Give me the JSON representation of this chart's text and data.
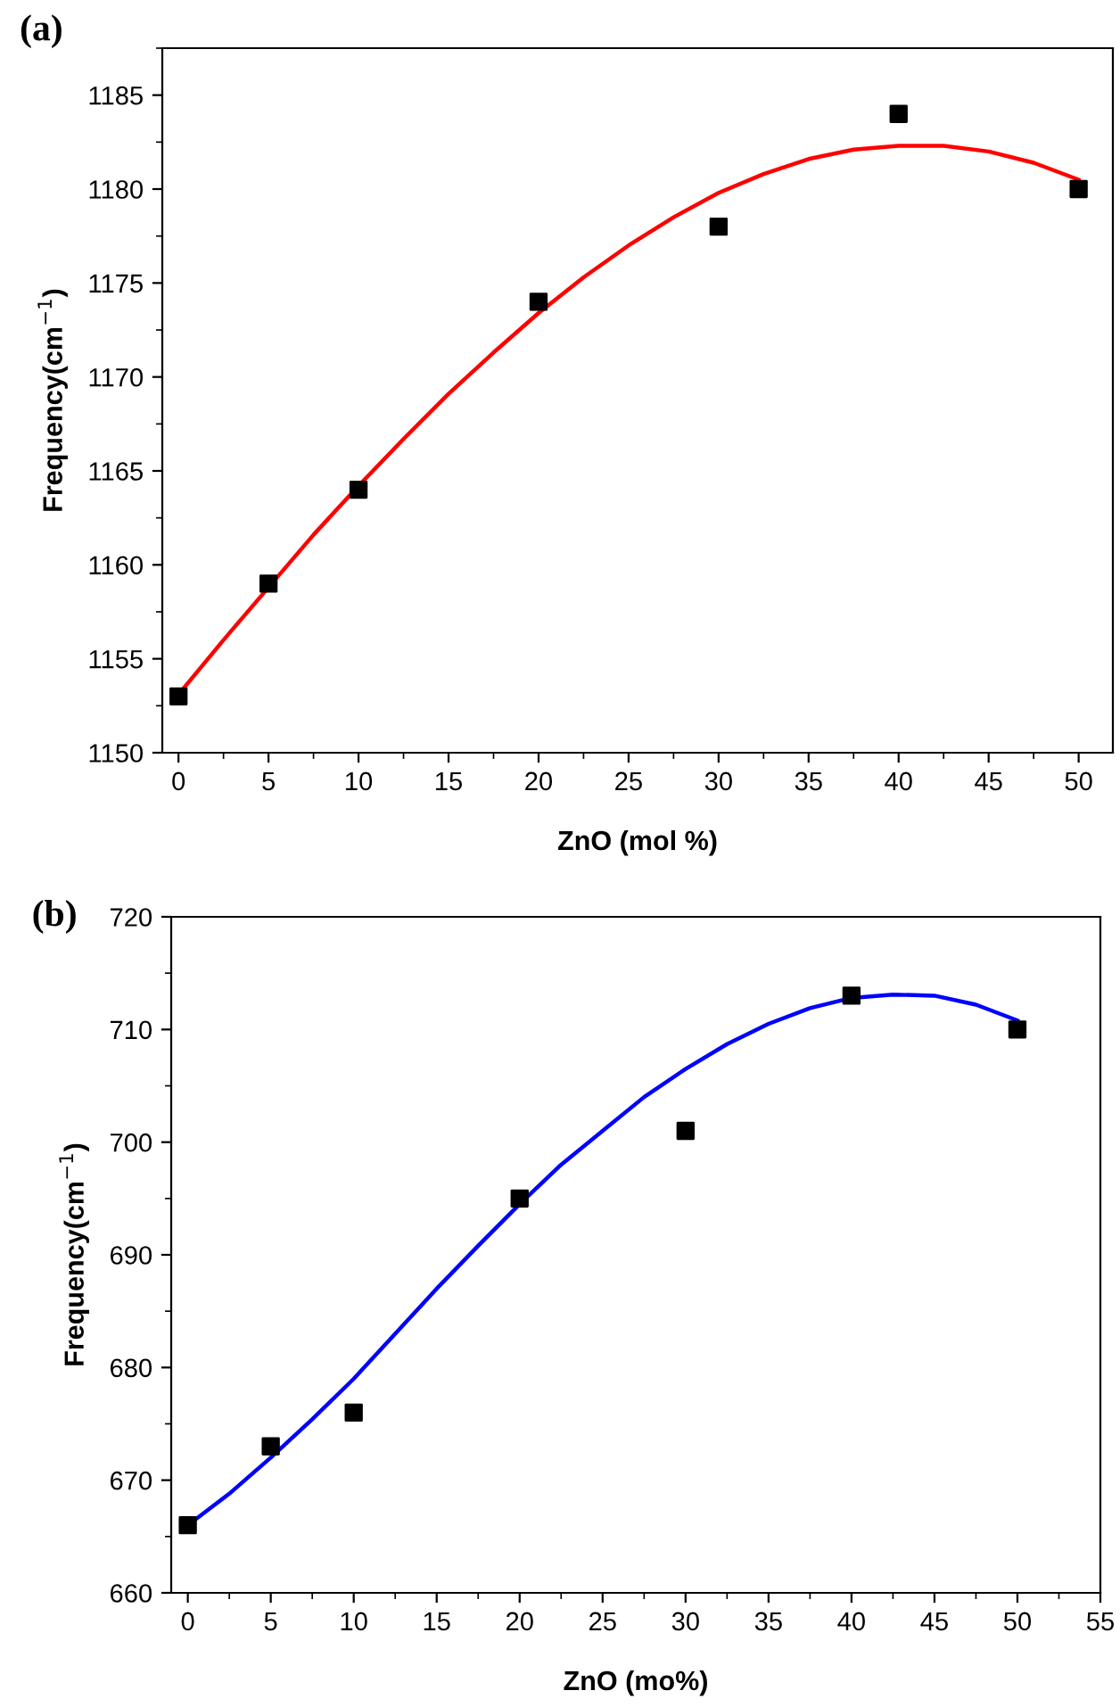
{
  "chart_data": [
    {
      "type": "scatter",
      "title": "(a)",
      "xlabel": "ZnO (mol %)",
      "ylabel": "Frequency(cm$^{−1}$)",
      "marker": "square",
      "xlim": [
        -0.9,
        51.9
      ],
      "ylim": [
        1150,
        1187.5
      ],
      "xticks": [
        0,
        5,
        10,
        15,
        20,
        25,
        30,
        35,
        40,
        45,
        50
      ],
      "yticks": [
        1150,
        1155,
        1160,
        1165,
        1170,
        1175,
        1180,
        1185
      ],
      "grid": false,
      "legend": false,
      "series": [
        {
          "color": "#000000",
          "x": [
            0,
            5,
            10,
            20,
            30,
            40,
            50
          ],
          "values": [
            1153,
            1159,
            1164,
            1174,
            1178,
            1184,
            1180
          ]
        },
        {
          "type": "line",
          "color": "#ff0000",
          "marker": "none",
          "x": [
            0,
            2.5,
            5,
            7.5,
            10,
            12.5,
            15,
            17.5,
            20,
            22.5,
            25,
            27.5,
            30,
            32.5,
            35,
            37.5,
            40,
            42.5,
            45,
            47.5,
            50
          ],
          "values": [
            1153.1,
            1156,
            1158.8,
            1161.6,
            1164.2,
            1166.7,
            1169.1,
            1171.3,
            1173.4,
            1175.3,
            1177,
            1178.5,
            1179.8,
            1180.8,
            1181.6,
            1182.1,
            1182.3,
            1182.3,
            1182,
            1181.4,
            1180.5
          ]
        }
      ]
    },
    {
      "type": "scatter",
      "title": "(b)",
      "xlabel": "ZnO (mo%)",
      "ylabel": "Frequency(cm$^{−1}$)",
      "marker": "square",
      "xlim": [
        -1,
        55
      ],
      "ylim": [
        660,
        720
      ],
      "xticks": [
        0,
        5,
        10,
        15,
        20,
        25,
        30,
        35,
        40,
        45,
        50,
        55
      ],
      "yticks": [
        660,
        670,
        680,
        690,
        700,
        710,
        720
      ],
      "grid": false,
      "legend": false,
      "series": [
        {
          "color": "#000000",
          "x": [
            0,
            5,
            10,
            20,
            30,
            40,
            50
          ],
          "values": [
            666,
            673,
            676,
            695,
            701,
            713,
            710
          ]
        },
        {
          "type": "line",
          "color": "#0000ff",
          "marker": "none",
          "x": [
            0,
            2.5,
            5,
            7.5,
            10,
            12.5,
            15,
            17.5,
            20,
            22.5,
            25,
            27.5,
            30,
            32.5,
            35,
            37.5,
            40,
            42.5,
            45,
            47.5,
            50
          ],
          "values": [
            666,
            668.8,
            672,
            675.4,
            679,
            683,
            687,
            690.8,
            694.5,
            698,
            701,
            704,
            706.5,
            708.7,
            710.5,
            711.9,
            712.8,
            713.1,
            713,
            712.2,
            710.8
          ]
        }
      ]
    }
  ]
}
